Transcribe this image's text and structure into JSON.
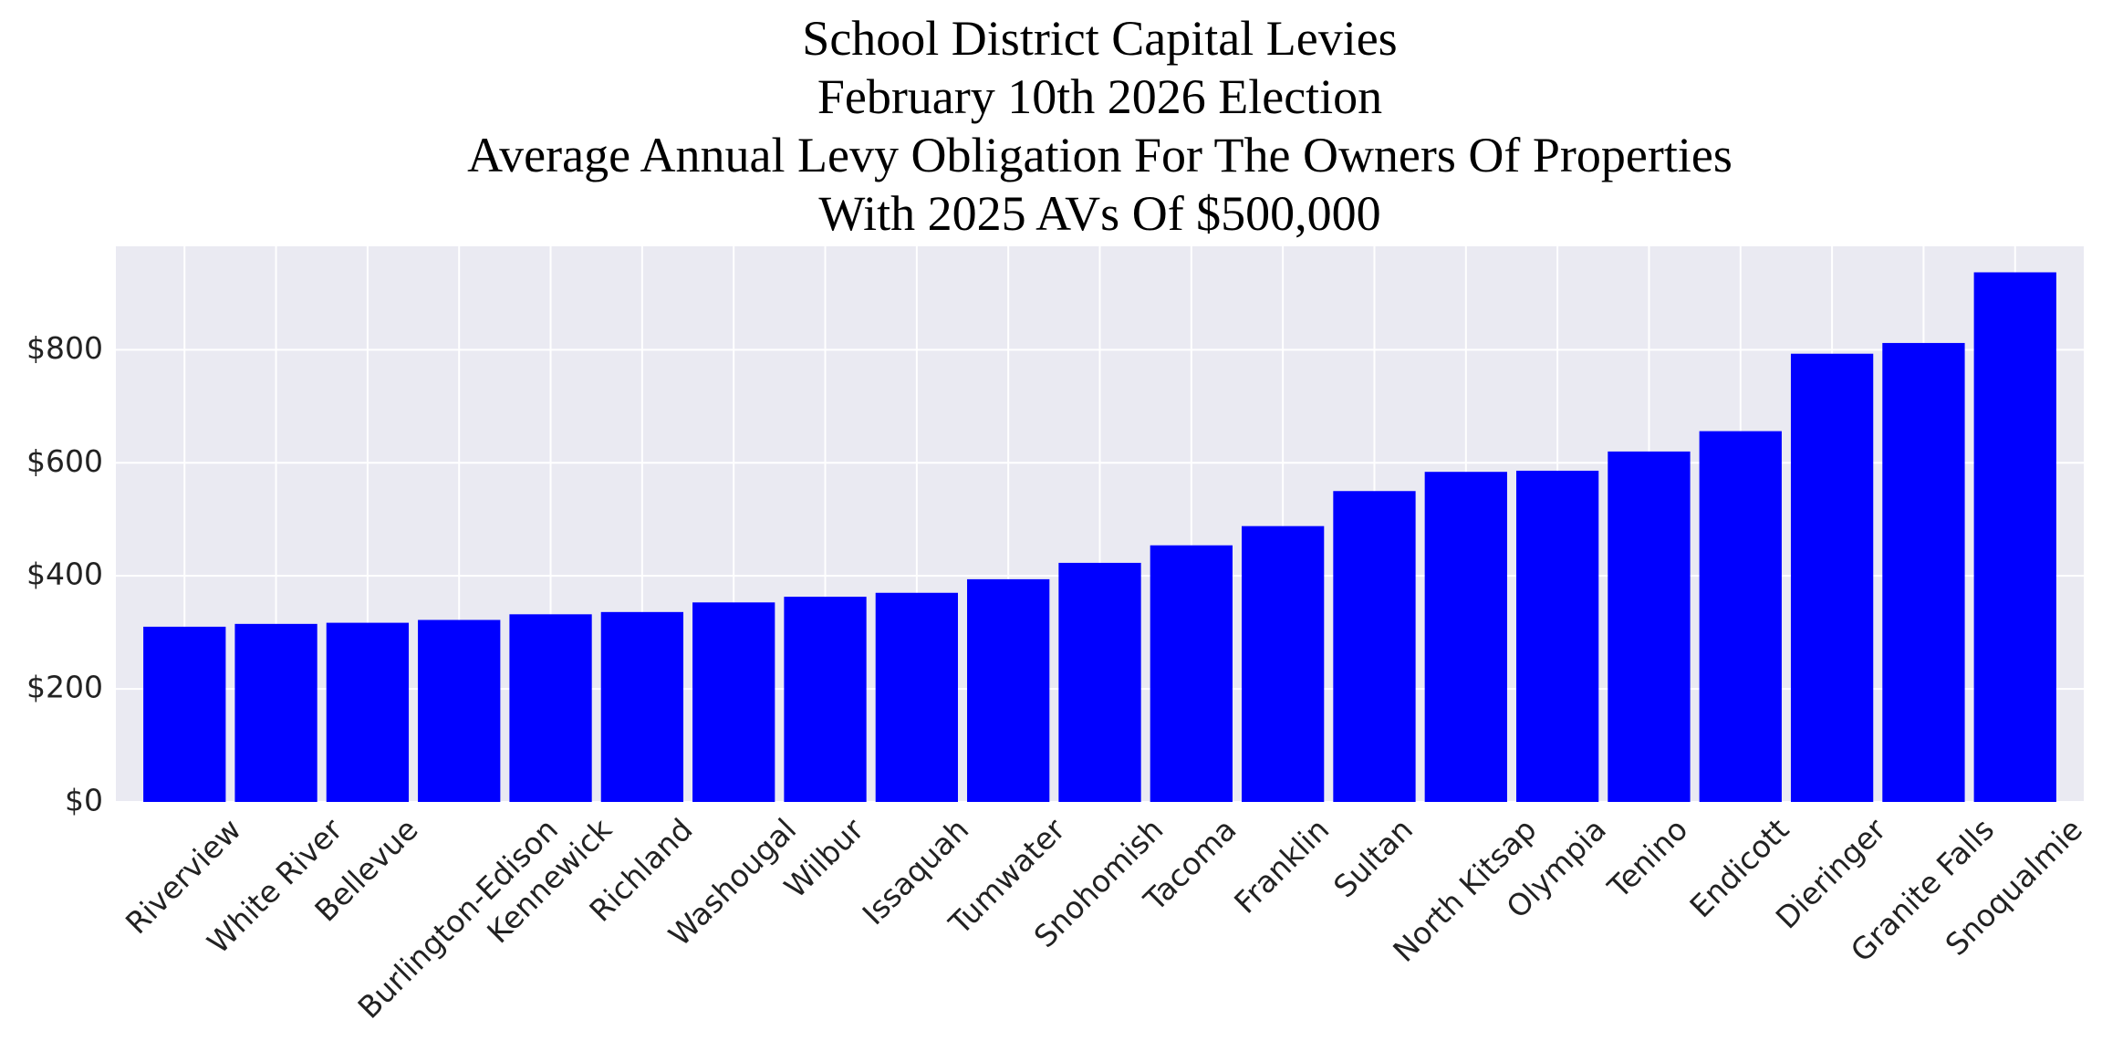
{
  "chart_data": {
    "type": "bar",
    "title": [
      "School District Capital Levies",
      "February 10th 2026 Election",
      "Average Annual Levy Obligation For The Owners Of Properties",
      "With 2025 AVs Of $500,000"
    ],
    "categories": [
      "Riverview",
      "White River",
      "Bellevue",
      "Burlington-Edison",
      "Kennewick",
      "Richland",
      "Washougal",
      "Wilbur",
      "Issaquah",
      "Tumwater",
      "Snohomish",
      "Tacoma",
      "Franklin",
      "Sultan",
      "North Kitsap",
      "Olympia",
      "Tenino",
      "Endicott",
      "Dieringer",
      "Granite Falls",
      "Snoqualmie"
    ],
    "values": [
      310,
      315,
      317,
      322,
      332,
      336,
      353,
      363,
      370,
      394,
      423,
      454,
      488,
      550,
      584,
      586,
      620,
      656,
      793,
      812,
      937
    ],
    "color": "#0000ff",
    "ylim": [
      0,
      983
    ],
    "yticks": [
      {
        "value": 0,
        "label": "$0"
      },
      {
        "value": 200,
        "label": "$200"
      },
      {
        "value": 400,
        "label": "$400"
      },
      {
        "value": 600,
        "label": "$600"
      },
      {
        "value": 800,
        "label": "$800"
      }
    ],
    "grid": true
  }
}
